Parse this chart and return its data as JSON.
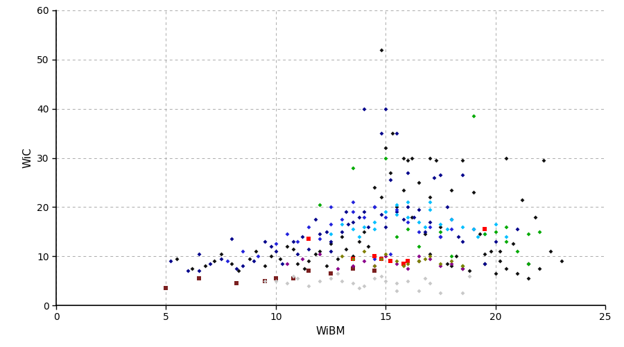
{
  "title": "",
  "xlabel": "WiBM",
  "ylabel": "WiC",
  "xlim": [
    0,
    25
  ],
  "ylim": [
    0,
    60
  ],
  "xticks": [
    0,
    5,
    10,
    15,
    20,
    25
  ],
  "yticks": [
    0,
    10,
    20,
    30,
    40,
    50,
    60
  ],
  "background_color": "#ffffff",
  "grid_color": "#aaaaaa",
  "grid_style": "--",
  "figsize": [
    9.0,
    5.0
  ],
  "dpi": 100,
  "series": [
    {
      "label": "black",
      "color": "#111111",
      "marker": "D",
      "ms": 3,
      "points": [
        [
          5.5,
          9.5
        ],
        [
          6.2,
          7.5
        ],
        [
          6.8,
          8.0
        ],
        [
          7.2,
          9.0
        ],
        [
          7.5,
          10.5
        ],
        [
          8.0,
          8.5
        ],
        [
          8.3,
          7.0
        ],
        [
          8.8,
          9.5
        ],
        [
          9.1,
          11.0
        ],
        [
          9.5,
          8.0
        ],
        [
          9.8,
          10.0
        ],
        [
          10.2,
          9.5
        ],
        [
          10.5,
          12.0
        ],
        [
          10.8,
          11.5
        ],
        [
          11.0,
          8.5
        ],
        [
          11.3,
          7.5
        ],
        [
          11.5,
          9.0
        ],
        [
          11.8,
          10.5
        ],
        [
          12.0,
          11.0
        ],
        [
          12.3,
          8.0
        ],
        [
          12.5,
          12.5
        ],
        [
          12.8,
          9.5
        ],
        [
          13.0,
          14.0
        ],
        [
          13.2,
          11.5
        ],
        [
          13.5,
          10.0
        ],
        [
          13.8,
          13.0
        ],
        [
          14.0,
          15.0
        ],
        [
          14.2,
          12.0
        ],
        [
          14.5,
          24.0
        ],
        [
          14.8,
          22.0
        ],
        [
          15.0,
          32.0
        ],
        [
          15.2,
          27.0
        ],
        [
          15.5,
          20.0
        ],
        [
          15.8,
          23.5
        ],
        [
          16.0,
          29.5
        ],
        [
          16.2,
          18.0
        ],
        [
          16.5,
          25.0
        ],
        [
          16.8,
          14.5
        ],
        [
          17.0,
          22.0
        ],
        [
          17.3,
          29.5
        ],
        [
          17.5,
          16.0
        ],
        [
          17.8,
          8.5
        ],
        [
          18.0,
          23.5
        ],
        [
          18.2,
          10.0
        ],
        [
          18.5,
          7.5
        ],
        [
          18.8,
          7.0
        ],
        [
          19.0,
          23.0
        ],
        [
          19.3,
          14.5
        ],
        [
          19.5,
          10.5
        ],
        [
          19.8,
          11.0
        ],
        [
          20.0,
          6.5
        ],
        [
          20.2,
          9.0
        ],
        [
          20.5,
          7.5
        ],
        [
          20.8,
          12.5
        ],
        [
          21.0,
          6.5
        ],
        [
          21.2,
          21.5
        ],
        [
          21.5,
          5.5
        ],
        [
          21.8,
          18.0
        ],
        [
          22.0,
          7.5
        ],
        [
          22.5,
          11.0
        ],
        [
          23.0,
          9.0
        ],
        [
          14.8,
          52.0
        ],
        [
          15.3,
          35.0
        ],
        [
          15.8,
          30.0
        ],
        [
          16.2,
          30.0
        ],
        [
          17.0,
          30.0
        ],
        [
          18.5,
          29.5
        ],
        [
          20.5,
          30.0
        ],
        [
          22.2,
          29.5
        ],
        [
          16.5,
          9.0
        ],
        [
          17.0,
          10.5
        ],
        [
          18.0,
          8.0
        ],
        [
          19.5,
          8.5
        ],
        [
          20.2,
          11.0
        ],
        [
          21.5,
          8.5
        ]
      ]
    },
    {
      "label": "darkblue",
      "color": "#00008B",
      "marker": "D",
      "ms": 3,
      "points": [
        [
          5.2,
          9.0
        ],
        [
          6.0,
          7.0
        ],
        [
          6.5,
          10.5
        ],
        [
          7.0,
          8.5
        ],
        [
          7.5,
          9.5
        ],
        [
          8.0,
          13.5
        ],
        [
          8.5,
          8.0
        ],
        [
          9.0,
          9.0
        ],
        [
          9.5,
          13.0
        ],
        [
          10.0,
          11.0
        ],
        [
          10.3,
          8.5
        ],
        [
          10.8,
          13.0
        ],
        [
          11.2,
          14.0
        ],
        [
          11.5,
          11.5
        ],
        [
          12.0,
          14.5
        ],
        [
          12.3,
          15.0
        ],
        [
          12.5,
          11.0
        ],
        [
          13.0,
          15.0
        ],
        [
          13.3,
          16.5
        ],
        [
          13.5,
          17.0
        ],
        [
          13.8,
          18.0
        ],
        [
          14.0,
          19.0
        ],
        [
          14.2,
          16.0
        ],
        [
          14.5,
          20.0
        ],
        [
          14.8,
          18.5
        ],
        [
          15.0,
          16.0
        ],
        [
          15.2,
          25.5
        ],
        [
          15.5,
          19.0
        ],
        [
          15.8,
          17.5
        ],
        [
          16.0,
          20.0
        ],
        [
          16.3,
          18.0
        ],
        [
          16.5,
          19.5
        ],
        [
          16.8,
          15.0
        ],
        [
          17.0,
          17.0
        ],
        [
          17.2,
          26.0
        ],
        [
          17.5,
          14.0
        ],
        [
          17.8,
          20.0
        ],
        [
          18.0,
          17.5
        ],
        [
          18.3,
          14.0
        ],
        [
          18.5,
          13.0
        ],
        [
          19.0,
          15.5
        ],
        [
          19.5,
          8.5
        ],
        [
          20.0,
          13.0
        ],
        [
          21.0,
          15.5
        ],
        [
          14.0,
          40.0
        ],
        [
          15.0,
          40.0
        ],
        [
          6.5,
          7.0
        ],
        [
          8.2,
          7.5
        ],
        [
          9.8,
          12.0
        ],
        [
          11.8,
          17.5
        ],
        [
          13.2,
          19.0
        ],
        [
          14.8,
          35.0
        ],
        [
          15.5,
          35.0
        ],
        [
          16.0,
          27.0
        ],
        [
          17.5,
          26.5
        ],
        [
          18.5,
          26.5
        ],
        [
          12.5,
          13.0
        ],
        [
          11.0,
          10.5
        ]
      ]
    },
    {
      "label": "blue",
      "color": "#2222DD",
      "marker": "D",
      "ms": 3,
      "points": [
        [
          7.8,
          9.0
        ],
        [
          8.5,
          11.0
        ],
        [
          9.2,
          10.0
        ],
        [
          10.0,
          12.5
        ],
        [
          10.5,
          14.5
        ],
        [
          11.0,
          13.0
        ],
        [
          11.5,
          16.0
        ],
        [
          12.0,
          13.5
        ],
        [
          12.5,
          16.5
        ],
        [
          13.0,
          17.5
        ],
        [
          13.5,
          19.0
        ],
        [
          14.0,
          18.0
        ],
        [
          14.5,
          20.0
        ],
        [
          15.0,
          18.0
        ],
        [
          15.5,
          19.5
        ],
        [
          16.0,
          17.0
        ],
        [
          16.5,
          15.0
        ],
        [
          17.0,
          16.0
        ],
        [
          17.5,
          14.0
        ],
        [
          18.0,
          15.5
        ],
        [
          12.5,
          20.0
        ],
        [
          13.5,
          21.0
        ],
        [
          14.5,
          9.5
        ],
        [
          15.2,
          10.5
        ]
      ]
    },
    {
      "label": "cyan",
      "color": "#00BFFF",
      "marker": "D",
      "ms": 3,
      "points": [
        [
          12.5,
          14.5
        ],
        [
          13.0,
          16.5
        ],
        [
          13.5,
          15.5
        ],
        [
          14.0,
          16.0
        ],
        [
          14.5,
          17.0
        ],
        [
          15.0,
          19.0
        ],
        [
          15.5,
          18.5
        ],
        [
          16.0,
          18.0
        ],
        [
          16.5,
          17.0
        ],
        [
          17.0,
          19.5
        ],
        [
          17.5,
          16.5
        ],
        [
          18.0,
          17.5
        ],
        [
          18.5,
          16.0
        ],
        [
          19.0,
          15.5
        ],
        [
          19.5,
          14.5
        ],
        [
          20.0,
          16.5
        ],
        [
          20.5,
          14.0
        ],
        [
          15.5,
          20.5
        ],
        [
          16.0,
          21.0
        ],
        [
          17.0,
          21.0
        ],
        [
          14.5,
          15.5
        ],
        [
          13.8,
          14.0
        ],
        [
          16.8,
          16.0
        ],
        [
          17.8,
          15.5
        ],
        [
          19.2,
          14.0
        ]
      ]
    },
    {
      "label": "green",
      "color": "#00AA00",
      "marker": "D",
      "ms": 3,
      "points": [
        [
          12.0,
          20.5
        ],
        [
          13.5,
          28.0
        ],
        [
          15.0,
          30.0
        ],
        [
          16.0,
          15.5
        ],
        [
          17.5,
          15.0
        ],
        [
          18.0,
          10.0
        ],
        [
          18.5,
          8.0
        ],
        [
          19.0,
          38.5
        ],
        [
          19.5,
          14.5
        ],
        [
          20.0,
          15.0
        ],
        [
          20.5,
          16.0
        ],
        [
          21.0,
          11.0
        ],
        [
          21.5,
          8.5
        ],
        [
          22.0,
          15.0
        ],
        [
          15.5,
          14.0
        ],
        [
          16.5,
          12.0
        ],
        [
          20.5,
          13.0
        ],
        [
          21.5,
          14.5
        ]
      ]
    },
    {
      "label": "red_sq",
      "color": "#FF0000",
      "marker": "s",
      "ms": 4,
      "points": [
        [
          11.5,
          13.5
        ],
        [
          13.5,
          9.5
        ],
        [
          14.8,
          9.5
        ],
        [
          15.2,
          9.0
        ],
        [
          15.8,
          8.5
        ],
        [
          19.5,
          15.5
        ],
        [
          14.5,
          10.0
        ],
        [
          16.0,
          9.0
        ]
      ]
    },
    {
      "label": "darkred_sq",
      "color": "#7B2020",
      "marker": "s",
      "ms": 4,
      "points": [
        [
          5.0,
          3.5
        ],
        [
          8.2,
          4.5
        ],
        [
          9.5,
          5.0
        ],
        [
          10.8,
          5.5
        ],
        [
          11.5,
          7.0
        ],
        [
          12.5,
          6.5
        ],
        [
          13.5,
          7.5
        ],
        [
          14.5,
          7.0
        ],
        [
          6.5,
          5.5
        ],
        [
          10.0,
          5.5
        ]
      ]
    },
    {
      "label": "purple",
      "color": "#8B008B",
      "marker": "D",
      "ms": 3,
      "points": [
        [
          10.5,
          8.5
        ],
        [
          11.2,
          9.5
        ],
        [
          12.0,
          10.5
        ],
        [
          13.5,
          8.0
        ],
        [
          14.0,
          9.0
        ],
        [
          15.0,
          10.0
        ],
        [
          15.5,
          8.5
        ],
        [
          16.5,
          10.0
        ],
        [
          17.0,
          9.5
        ],
        [
          18.5,
          7.5
        ],
        [
          12.8,
          7.5
        ],
        [
          14.5,
          8.0
        ],
        [
          16.0,
          7.5
        ],
        [
          17.5,
          8.0
        ],
        [
          18.0,
          8.5
        ]
      ]
    },
    {
      "label": "olive",
      "color": "#808000",
      "marker": "D",
      "ms": 3,
      "points": [
        [
          13.0,
          10.0
        ],
        [
          13.5,
          9.5
        ],
        [
          14.0,
          11.0
        ],
        [
          14.5,
          8.0
        ],
        [
          15.0,
          10.5
        ],
        [
          15.5,
          9.0
        ],
        [
          16.0,
          8.5
        ],
        [
          16.5,
          9.0
        ],
        [
          17.0,
          10.0
        ],
        [
          17.5,
          8.5
        ],
        [
          18.0,
          9.0
        ],
        [
          18.5,
          8.0
        ],
        [
          14.8,
          9.5
        ],
        [
          15.8,
          8.0
        ],
        [
          16.8,
          9.5
        ]
      ]
    },
    {
      "label": "lightgray_diamonds",
      "color": "#C8C8C8",
      "marker": "D",
      "ms": 3,
      "points": [
        [
          10.0,
          5.0
        ],
        [
          10.5,
          4.5
        ],
        [
          11.0,
          5.5
        ],
        [
          11.5,
          4.0
        ],
        [
          12.0,
          5.0
        ],
        [
          12.5,
          5.5
        ],
        [
          13.0,
          5.0
        ],
        [
          13.5,
          4.5
        ],
        [
          14.0,
          4.0
        ],
        [
          14.5,
          5.5
        ],
        [
          15.0,
          5.0
        ],
        [
          15.5,
          4.5
        ],
        [
          16.0,
          5.0
        ],
        [
          16.5,
          3.0
        ],
        [
          17.0,
          4.5
        ],
        [
          17.5,
          2.5
        ],
        [
          18.5,
          2.5
        ],
        [
          9.5,
          5.0
        ],
        [
          10.8,
          6.0
        ],
        [
          12.8,
          6.5
        ],
        [
          14.8,
          6.0
        ],
        [
          16.8,
          5.5
        ],
        [
          18.8,
          6.0
        ],
        [
          15.5,
          3.0
        ],
        [
          13.8,
          3.5
        ]
      ]
    }
  ]
}
